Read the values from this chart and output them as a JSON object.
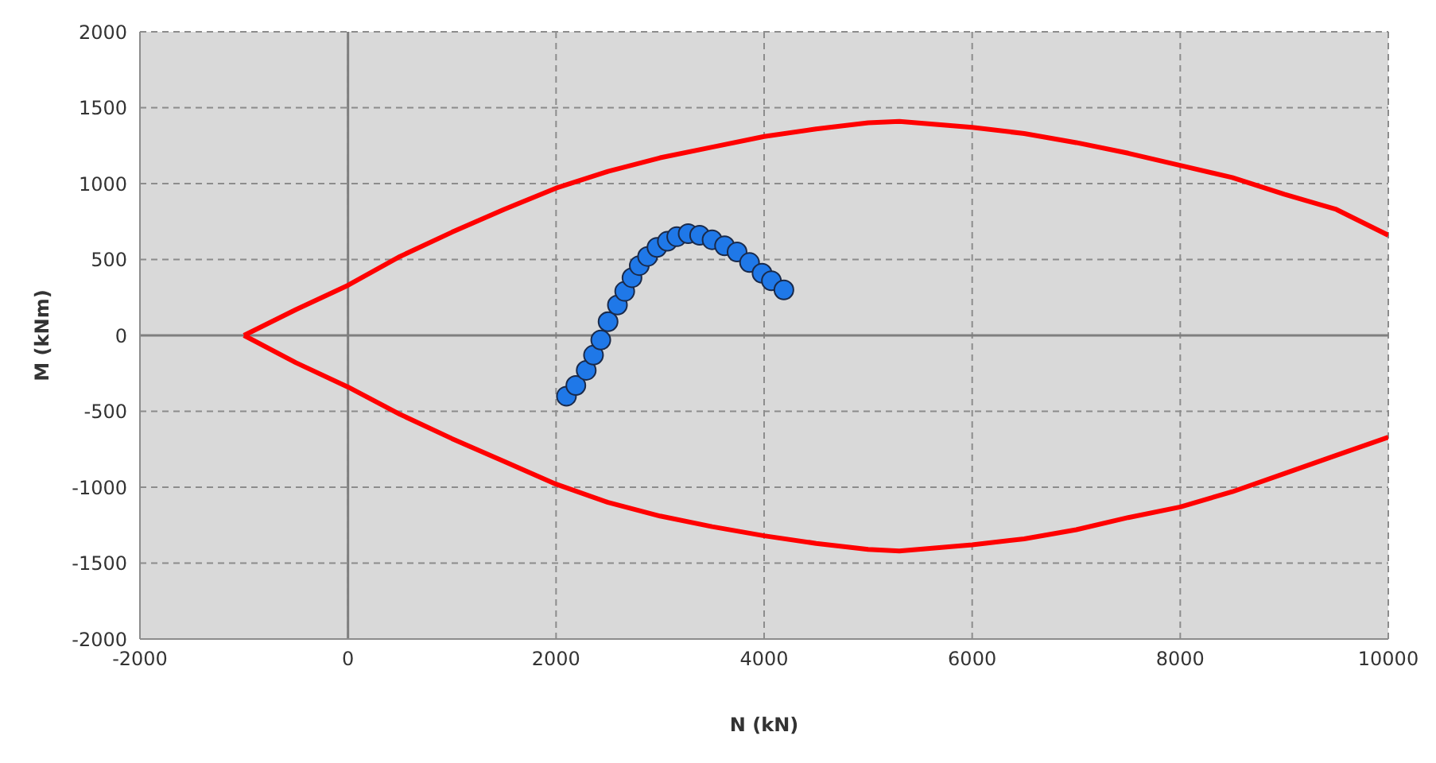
{
  "chart_data": {
    "type": "line",
    "xlabel": "N (kN)",
    "ylabel": "M (kNm)",
    "xlim": [
      -2000,
      10000
    ],
    "xticks": [
      -2000,
      0,
      2000,
      4000,
      6000,
      8000,
      10000
    ],
    "ylim": [
      -2000,
      2000
    ],
    "yticks": [
      -2000,
      -1500,
      -1000,
      -500,
      0,
      500,
      1000,
      1500,
      2000
    ],
    "grid": true,
    "legend": false,
    "series": [
      {
        "color": "#ff0000",
        "marker": "none",
        "x": [
          -1000,
          -500,
          0,
          500,
          1000,
          1500,
          2000,
          2500,
          3000,
          3500,
          4000,
          4500,
          5000,
          5300,
          6000,
          6500,
          7000,
          7500,
          8000,
          8500,
          9000,
          9500,
          10000
        ],
        "values": [
          0,
          170,
          330,
          520,
          680,
          830,
          970,
          1080,
          1170,
          1240,
          1310,
          1360,
          1400,
          1410,
          1370,
          1330,
          1270,
          1200,
          1120,
          1040,
          930,
          830,
          660
        ]
      },
      {
        "color": "#ff0000",
        "marker": "none",
        "x": [
          -1000,
          -500,
          0,
          500,
          1000,
          1500,
          2000,
          2500,
          3000,
          3500,
          4000,
          4500,
          5000,
          5300,
          6000,
          6500,
          7000,
          7500,
          8000,
          8500,
          9000,
          9500,
          10000
        ],
        "values": [
          0,
          -180,
          -340,
          -520,
          -680,
          -830,
          -980,
          -1100,
          -1190,
          -1260,
          -1320,
          -1370,
          -1410,
          -1420,
          -1380,
          -1340,
          -1280,
          -1200,
          -1130,
          -1030,
          -910,
          -790,
          -670
        ]
      },
      {
        "type": "scatter",
        "color": "#1f78e8",
        "marker": "circle",
        "x": [
          2100,
          2190,
          2290,
          2360,
          2430,
          2500,
          2590,
          2660,
          2730,
          2800,
          2880,
          2970,
          3070,
          3160,
          3270,
          3380,
          3500,
          3620,
          3740,
          3860,
          3980,
          4070,
          4190
        ],
        "values": [
          -400,
          -330,
          -230,
          -130,
          -30,
          90,
          200,
          290,
          380,
          460,
          520,
          580,
          620,
          650,
          670,
          660,
          630,
          590,
          550,
          480,
          410,
          360,
          300
        ]
      }
    ]
  }
}
